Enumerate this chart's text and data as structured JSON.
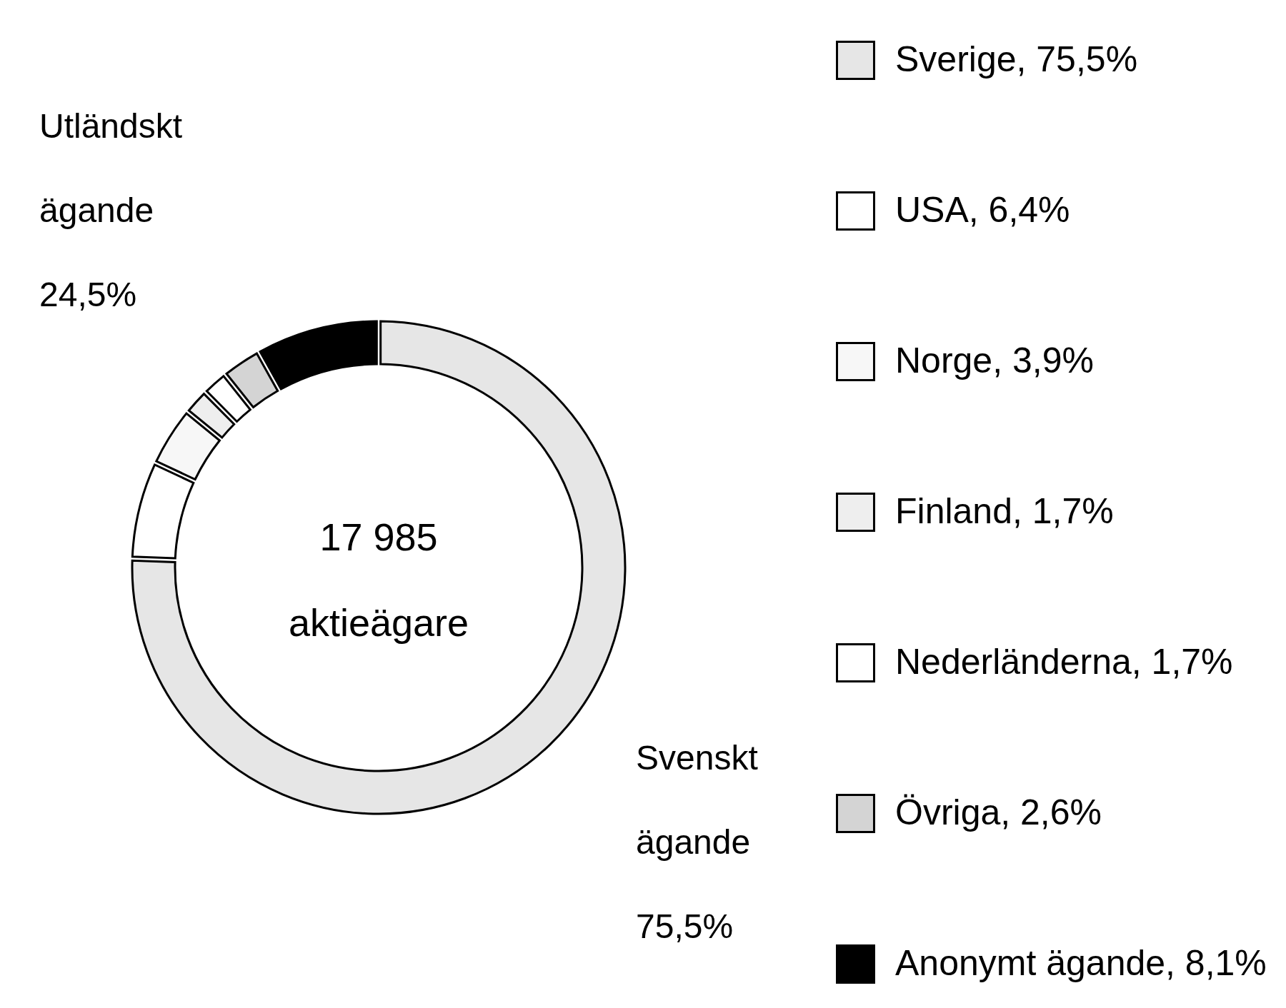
{
  "chart_data": {
    "type": "donut",
    "categories": [
      "Sverige",
      "USA",
      "Norge",
      "Finland",
      "Nederländerna",
      "Övriga",
      "Anonymt ägande"
    ],
    "values": [
      75.5,
      6.4,
      3.9,
      1.7,
      1.7,
      2.6,
      8.1
    ],
    "value_labels": [
      "75,5%",
      "6,4%",
      "3,9%",
      "1,7%",
      "1,7%",
      "2,6%",
      "8,1%"
    ],
    "colors": [
      "#e6e6e6",
      "#ffffff",
      "#f7f7f7",
      "#eeeeee",
      "#ffffff",
      "#d4d4d4",
      "#000000"
    ],
    "legend": "right",
    "annotations": [
      "17 985\naktieägare",
      "Utländskt\nägande\n24,5%",
      "Svenskt\nägande\n75,5%"
    ]
  }
}
